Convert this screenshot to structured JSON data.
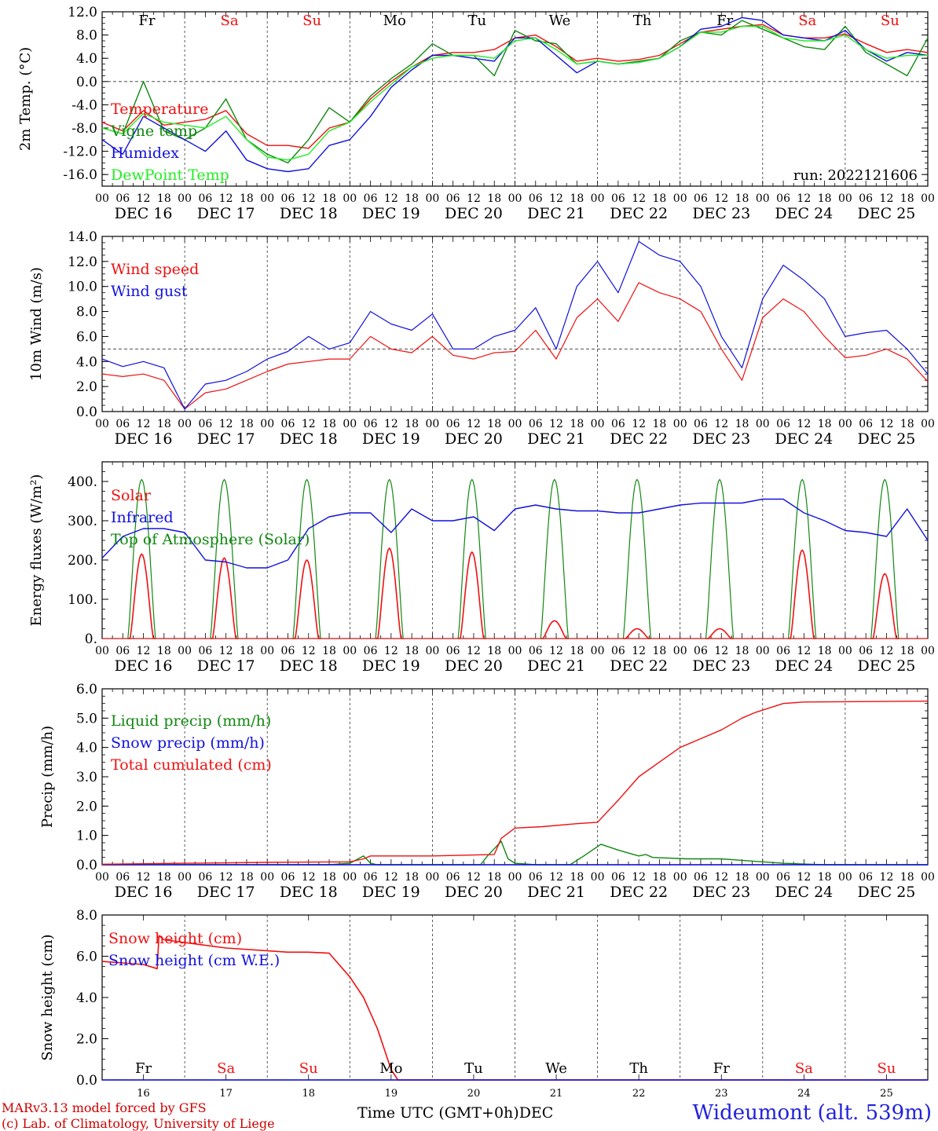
{
  "footer": {
    "model": "MARv3.13 model forced by GFS",
    "lab": "(c) Lab. of Climatology, University of Liege",
    "xtitle": "Time UTC (GMT+0h)",
    "month": "DEC",
    "place": "Wideumont (alt. 539m)"
  },
  "colors": {
    "red": "#ee1111",
    "green": "#118811",
    "blue": "#1111dd",
    "lightgreen": "#22ee22",
    "weekend": "#ee1111",
    "weekday": "#000000"
  },
  "chart_data": [
    {
      "id": "temp",
      "type": "line",
      "ylabel": "2m Temp. (°C)",
      "ylim": [
        -18,
        12
      ],
      "yticks": [
        "12.0",
        "8.0",
        "4.0",
        "0.0",
        "-4.0",
        "-8.0",
        "-12.0",
        "-16.0"
      ],
      "yticks_val": [
        12,
        8,
        4,
        0,
        -4,
        -8,
        -12,
        -16
      ],
      "refline": 0,
      "annotation": "run: 2022121606",
      "weekday_labels": [
        "Fr",
        "Sa",
        "Su",
        "Mo",
        "Tu",
        "We",
        "Th",
        "Fr",
        "Sa",
        "Su"
      ],
      "x_hours": [
        0,
        6,
        12,
        18,
        24,
        30,
        36,
        42,
        48,
        54,
        60,
        66,
        72,
        78,
        84,
        90,
        96,
        102,
        108,
        114,
        120,
        126,
        132,
        138,
        144,
        150,
        156,
        162,
        168,
        174,
        180,
        186,
        192,
        198,
        204,
        210,
        216,
        222,
        228,
        234,
        240
      ],
      "series": [
        {
          "name": "Temperature",
          "color": "red",
          "values": [
            -7.0,
            -8.5,
            -5.0,
            -7.5,
            -7.0,
            -6.5,
            -5.0,
            -9.0,
            -11.0,
            -11.0,
            -11.5,
            -8.0,
            -7.0,
            -3.0,
            0.0,
            2.5,
            4.5,
            5.0,
            5.0,
            5.5,
            7.5,
            8.0,
            6.0,
            3.5,
            4.0,
            3.5,
            3.8,
            4.5,
            6.5,
            8.5,
            9.0,
            9.5,
            9.8,
            8.0,
            7.5,
            7.5,
            8.2,
            6.5,
            5.0,
            5.5,
            5.0
          ]
        },
        {
          "name": "Vigne temp",
          "color": "green",
          "values": [
            -8.0,
            -9.0,
            0.0,
            -8.5,
            -10.0,
            -8.0,
            -3.0,
            -10.0,
            -12.5,
            -14.0,
            -10.0,
            -4.5,
            -7.0,
            -2.5,
            0.5,
            3.0,
            6.5,
            4.5,
            4.5,
            1.0,
            8.8,
            7.0,
            6.5,
            3.0,
            3.5,
            3.0,
            3.5,
            4.0,
            7.0,
            8.5,
            8.0,
            10.5,
            9.0,
            7.5,
            6.0,
            5.5,
            9.5,
            5.0,
            3.0,
            1.0,
            7.5
          ]
        },
        {
          "name": "Humidex",
          "color": "blue",
          "values": [
            -10.0,
            -12.5,
            -6.0,
            -8.0,
            -10.0,
            -12.0,
            -8.5,
            -13.5,
            -15.0,
            -15.5,
            -15.0,
            -11.0,
            -10.0,
            -6.0,
            -1.0,
            2.0,
            4.5,
            4.5,
            4.0,
            3.5,
            7.5,
            7.5,
            4.5,
            1.5,
            3.5,
            3.0,
            3.3,
            4.0,
            6.0,
            9.0,
            9.5,
            11.0,
            10.5,
            8.0,
            7.5,
            7.0,
            8.8,
            5.5,
            3.5,
            5.0,
            4.5
          ]
        },
        {
          "name": "DewPoint Temp",
          "color": "lightgreen",
          "values": [
            -8.0,
            -9.0,
            -5.5,
            -7.0,
            -7.5,
            -8.0,
            -6.0,
            -10.0,
            -13.0,
            -13.5,
            -12.5,
            -8.5,
            -7.0,
            -3.5,
            -0.5,
            2.5,
            4.0,
            4.5,
            4.5,
            4.0,
            7.0,
            7.5,
            5.5,
            3.0,
            3.5,
            3.0,
            3.3,
            4.0,
            6.0,
            8.5,
            8.5,
            9.5,
            9.5,
            7.5,
            7.0,
            7.0,
            8.0,
            5.5,
            4.0,
            4.5,
            4.5
          ]
        }
      ]
    },
    {
      "id": "wind",
      "type": "line",
      "ylabel": "10m Wind (m/s)",
      "ylim": [
        0,
        14
      ],
      "yticks": [
        "14.0",
        "12.0",
        "10.0",
        "8.0",
        "6.0",
        "4.0",
        "2.0",
        "0.0"
      ],
      "yticks_val": [
        14,
        12,
        10,
        8,
        6,
        4,
        2,
        0
      ],
      "refline": 5,
      "x_hours": [
        0,
        6,
        12,
        18,
        24,
        30,
        36,
        42,
        48,
        54,
        60,
        66,
        72,
        78,
        84,
        90,
        96,
        102,
        108,
        114,
        120,
        126,
        132,
        138,
        144,
        150,
        156,
        162,
        168,
        174,
        180,
        186,
        192,
        198,
        204,
        210,
        216,
        222,
        228,
        234,
        240
      ],
      "series": [
        {
          "name": "Wind speed",
          "color": "red",
          "values": [
            3.0,
            2.8,
            3.0,
            2.5,
            0.2,
            1.5,
            1.8,
            2.5,
            3.2,
            3.8,
            4.0,
            4.2,
            4.2,
            6.0,
            5.0,
            4.7,
            6.0,
            4.5,
            4.2,
            4.7,
            4.8,
            6.5,
            4.2,
            7.5,
            9.0,
            7.2,
            10.3,
            9.5,
            9.0,
            8.0,
            5.0,
            2.5,
            7.5,
            9.0,
            8.0,
            6.0,
            4.3,
            4.5,
            5.0,
            4.2,
            2.4
          ]
        },
        {
          "name": "Wind gust",
          "color": "blue",
          "values": [
            4.2,
            3.6,
            4.0,
            3.5,
            0.2,
            2.2,
            2.5,
            3.2,
            4.2,
            4.8,
            6.0,
            5.0,
            5.5,
            8.0,
            7.0,
            6.5,
            7.8,
            5.0,
            5.0,
            6.0,
            6.5,
            8.3,
            5.0,
            10.0,
            12.0,
            9.5,
            13.6,
            12.5,
            12.0,
            10.0,
            6.0,
            3.5,
            9.0,
            11.7,
            10.5,
            9.0,
            6.0,
            6.3,
            6.5,
            5.0,
            3.0
          ]
        }
      ]
    },
    {
      "id": "energy",
      "type": "line",
      "ylabel": "Energy fluxes (W/m²)",
      "ylim": [
        0,
        450
      ],
      "yticks": [
        "400.",
        "300.",
        "200.",
        "100.",
        "0."
      ],
      "yticks_val": [
        400,
        300,
        200,
        100,
        0
      ],
      "solar_peaks": [
        215,
        205,
        200,
        230,
        220,
        45,
        25,
        25,
        225,
        165
      ],
      "toa_peak": 405,
      "series": [
        {
          "name": "Solar",
          "color": "red"
        },
        {
          "name": "Infrared",
          "color": "blue",
          "x_hours": [
            0,
            6,
            12,
            18,
            24,
            30,
            36,
            42,
            48,
            54,
            60,
            66,
            72,
            78,
            84,
            90,
            96,
            102,
            108,
            114,
            120,
            126,
            132,
            138,
            144,
            150,
            156,
            162,
            168,
            174,
            180,
            186,
            192,
            198,
            204,
            210,
            216,
            222,
            228,
            234,
            240
          ],
          "values": [
            205,
            260,
            280,
            280,
            270,
            200,
            195,
            180,
            180,
            200,
            280,
            310,
            320,
            320,
            270,
            330,
            300,
            300,
            310,
            275,
            330,
            340,
            330,
            325,
            325,
            320,
            320,
            330,
            340,
            345,
            345,
            345,
            355,
            355,
            320,
            300,
            275,
            270,
            260,
            330,
            250
          ]
        },
        {
          "name": "Top of Atmosphere (Solar)",
          "color": "green"
        }
      ]
    },
    {
      "id": "precip",
      "type": "line",
      "ylabel": "Precip (mm/h)",
      "ylim": [
        0,
        6
      ],
      "yticks": [
        "6.0",
        "5.0",
        "4.0",
        "3.0",
        "2.0",
        "1.0",
        "0.0"
      ],
      "yticks_val": [
        6,
        5,
        4,
        3,
        2,
        1,
        0
      ],
      "series": [
        {
          "name": "Liquid precip (mm/h)",
          "color": "green",
          "x_hours": [
            0,
            66,
            72,
            76,
            78,
            80,
            86,
            110,
            112,
            116,
            118,
            120,
            126,
            136,
            140,
            145,
            150,
            156,
            158,
            160,
            170,
            180,
            186,
            192,
            198,
            210,
            240
          ],
          "values": [
            0,
            0,
            0.05,
            0.3,
            0.05,
            0,
            0,
            0,
            0.3,
            0.8,
            0.2,
            0.05,
            0,
            0,
            0.3,
            0.7,
            0.5,
            0.3,
            0.35,
            0.25,
            0.2,
            0.2,
            0.15,
            0.1,
            0.05,
            0,
            0
          ]
        },
        {
          "name": "Snow precip (mm/h)",
          "color": "blue",
          "x_hours": [
            0,
            240
          ],
          "values": [
            0,
            0
          ]
        },
        {
          "name": "Total cumulated (cm)",
          "color": "red",
          "x_hours": [
            0,
            24,
            48,
            72,
            76,
            78,
            96,
            114,
            116,
            120,
            128,
            138,
            144,
            150,
            156,
            162,
            168,
            174,
            180,
            186,
            190,
            198,
            204,
            240
          ],
          "values": [
            0.02,
            0.05,
            0.08,
            0.1,
            0.2,
            0.3,
            0.3,
            0.35,
            0.9,
            1.25,
            1.3,
            1.4,
            1.45,
            2.2,
            3.0,
            3.5,
            4.0,
            4.3,
            4.6,
            5.0,
            5.2,
            5.5,
            5.55,
            5.58
          ]
        }
      ]
    },
    {
      "id": "snow",
      "type": "line",
      "ylabel": "Snow height (cm)",
      "ylim": [
        0,
        8
      ],
      "yticks": [
        "8.0",
        "6.0",
        "4.0",
        "2.0",
        "0.0"
      ],
      "yticks_val": [
        8,
        6,
        4,
        2,
        0
      ],
      "weekday_labels": [
        "Fr",
        "Sa",
        "Su",
        "Mo",
        "Tu",
        "We",
        "Th",
        "Fr",
        "Sa",
        "Su"
      ],
      "day_numbers": [
        "16",
        "17",
        "18",
        "19",
        "20",
        "21",
        "22",
        "23",
        "24",
        "25"
      ],
      "series": [
        {
          "name": "Snow height (cm)",
          "color": "red",
          "x_hours": [
            0,
            12,
            16,
            16.5,
            18,
            36,
            54,
            60,
            66,
            72,
            76,
            80,
            84,
            86,
            240
          ],
          "values": [
            5.75,
            5.6,
            5.4,
            7.0,
            6.8,
            6.4,
            6.2,
            6.2,
            6.15,
            5.0,
            4.0,
            2.5,
            0.5,
            0,
            0
          ]
        },
        {
          "name": "Snow height (cm W.E.)",
          "color": "blue",
          "x_hours": [
            0,
            240
          ],
          "values": [
            0,
            0
          ]
        }
      ]
    }
  ],
  "day_labels": [
    "DEC 16",
    "DEC 17",
    "DEC 18",
    "DEC 19",
    "DEC 20",
    "DEC 21",
    "DEC 22",
    "DEC 23",
    "DEC 24",
    "DEC 25"
  ],
  "hour_labels": [
    "00",
    "06",
    "12",
    "18"
  ]
}
